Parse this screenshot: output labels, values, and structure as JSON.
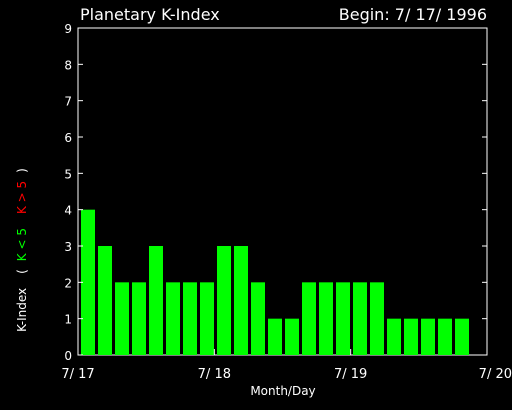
{
  "header": {
    "title": "Planetary K-Index",
    "begin_label": "Begin: 7/ 17/ 1996"
  },
  "colors": {
    "background": "#000000",
    "axis": "#ffffff",
    "bar_quiet": "#00ff00",
    "bar_storm": "#ff0000"
  },
  "ylabel": {
    "main": "K-Index",
    "open_paren": "(",
    "legend_quiet": "K < 5",
    "legend_storm": "K > 5",
    "close_paren": ")"
  },
  "chart_data": {
    "type": "bar",
    "title": "Planetary K-Index",
    "xlabel": "Month/Day",
    "ylabel": "K-Index",
    "ylim": [
      0,
      9
    ],
    "yticks": [
      "0",
      "1",
      "2",
      "3",
      "4",
      "5",
      "6",
      "7",
      "8",
      "9"
    ],
    "x_tick_labels": [
      "7/ 17",
      "7/ 18",
      "7/ 19",
      "7/ 20"
    ],
    "values": [
      4,
      3,
      2,
      2,
      3,
      2,
      2,
      2,
      3,
      3,
      2,
      1,
      1,
      2,
      2,
      2,
      2,
      2,
      1,
      1,
      1,
      1,
      1
    ],
    "grid": false,
    "legend": "left, vertical"
  }
}
